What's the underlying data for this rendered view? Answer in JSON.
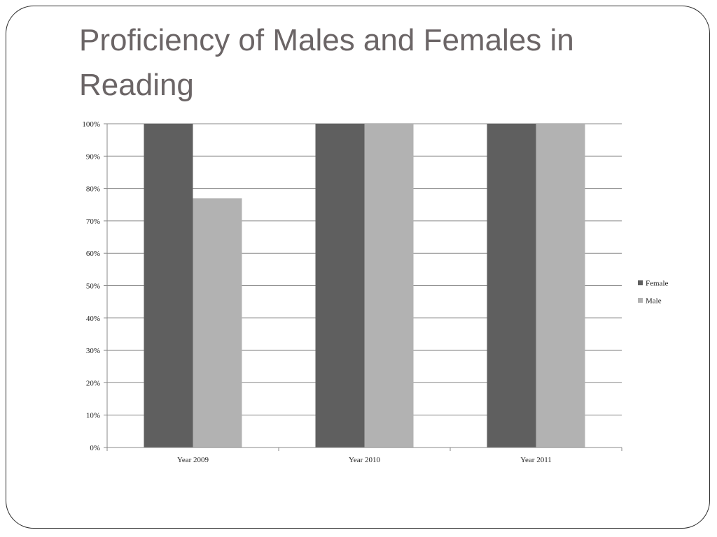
{
  "slide": {
    "title": "Proficiency of Males and Females in Reading"
  },
  "chart_data": {
    "type": "bar",
    "title": "",
    "xlabel": "",
    "ylabel": "",
    "categories": [
      "Year 2009",
      "Year 2010",
      "Year 2011"
    ],
    "series": [
      {
        "name": "Female",
        "values": [
          100,
          100,
          100
        ],
        "color": "#5f5f5f"
      },
      {
        "name": "Male",
        "values": [
          77,
          100,
          100
        ],
        "color": "#b2b2b2"
      }
    ],
    "ylim": [
      0,
      100
    ],
    "yticks": [
      "0%",
      "10%",
      "20%",
      "30%",
      "40%",
      "50%",
      "60%",
      "70%",
      "80%",
      "90%",
      "100%"
    ],
    "grid": true,
    "legend_position": "right"
  }
}
